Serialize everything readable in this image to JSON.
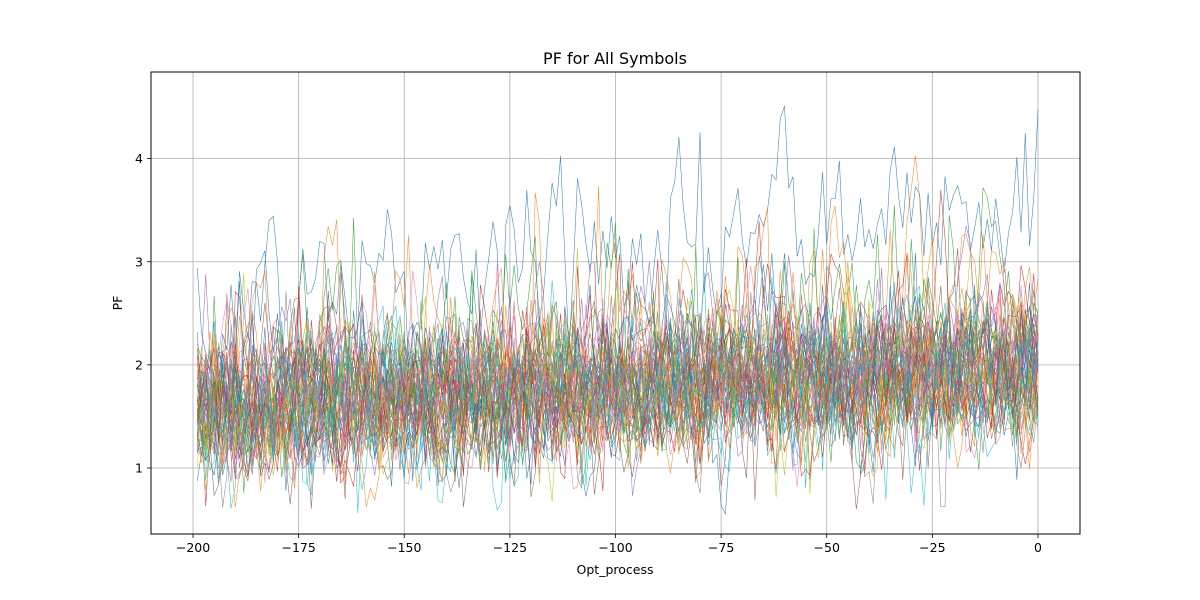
{
  "chart_data": {
    "type": "line",
    "title": "PF for All Symbols",
    "xlabel": "Opt_process",
    "ylabel": "PF",
    "xlim": [
      -209.95,
      9.95
    ],
    "ylim": [
      0.36,
      4.84
    ],
    "xticks": [
      -200,
      -175,
      -150,
      -125,
      -100,
      -75,
      -50,
      -25,
      0
    ],
    "xtick_labels": [
      "−200",
      "−175",
      "−150",
      "−125",
      "−100",
      "−75",
      "−50",
      "−25",
      "0"
    ],
    "yticks": [
      1,
      2,
      3,
      4
    ],
    "ytick_labels": [
      "1",
      "2",
      "3",
      "4"
    ],
    "grid": true,
    "legend": "none",
    "x_range": [
      -199,
      0
    ],
    "series_count": 60,
    "series_colors": [
      "#1f77b4",
      "#ff7f0e",
      "#2ca02c",
      "#d62728",
      "#9467bd",
      "#8c564b",
      "#e377c2",
      "#7f7f7f",
      "#bcbd22",
      "#17becf"
    ],
    "series_envelopes": [
      {
        "mean_start": 2.55,
        "mean_end": 3.65,
        "amplitude": 0.42
      },
      {
        "mean_start": 2.1,
        "mean_end": 2.95,
        "amplitude": 0.48
      },
      {
        "mean_start": 1.95,
        "mean_end": 2.6,
        "amplitude": 0.5
      },
      {
        "mean_start": 1.8,
        "mean_end": 2.45,
        "amplitude": 0.45
      },
      {
        "mean_start": 1.75,
        "mean_end": 2.3,
        "amplitude": 0.42
      },
      {
        "mean_start": 1.7,
        "mean_end": 2.2,
        "amplitude": 0.38
      }
    ],
    "series_default_envelope": {
      "mean_start": 1.6,
      "mean_end": 1.95,
      "amplitude": 0.28
    }
  }
}
